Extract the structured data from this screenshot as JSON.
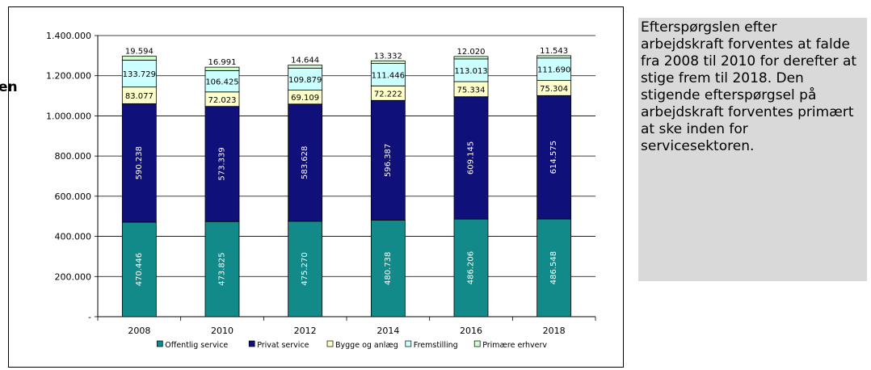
{
  "edge_text": "en",
  "side_note": {
    "text": "Efterspørgslen efter arbejdskraft forventes at falde fra 2008 til 2010 for derefter at stige frem til 2018. Den stigende efterspørgsel på arbejdskraft forventes primært at ske inden for servicesektoren."
  },
  "chart_data": {
    "type": "bar",
    "stacked": true,
    "categories": [
      "2008",
      "2010",
      "2012",
      "2014",
      "2016",
      "2018"
    ],
    "series": [
      {
        "name": "Offentlig service",
        "color": "#138a8a",
        "values": [
          470446,
          473825,
          475270,
          480738,
          486206,
          486548
        ],
        "labels": [
          "470.446",
          "473.825",
          "475.270",
          "480.738",
          "486.206",
          "486.548"
        ]
      },
      {
        "name": "Privat service",
        "color": "#10107a",
        "values": [
          590238,
          573339,
          583628,
          596387,
          609145,
          614575
        ],
        "labels": [
          "590.238",
          "573.339",
          "583.628",
          "596.387",
          "609.145",
          "614.575"
        ]
      },
      {
        "name": "Bygge og anlæg",
        "color": "#ffffcc",
        "values": [
          83077,
          72023,
          69109,
          72222,
          75334,
          75304
        ],
        "labels": [
          "83.077",
          "72.023",
          "69.109",
          "72.222",
          "75.334",
          "75.304"
        ]
      },
      {
        "name": "Fremstilling",
        "color": "#ccffff",
        "values": [
          133729,
          106425,
          109879,
          111446,
          113013,
          111690
        ],
        "labels": [
          "133.729",
          "106.425",
          "109.879",
          "111.446",
          "113.013",
          "111.690"
        ]
      },
      {
        "name": "Primære erhverv",
        "color": "#ccffcc",
        "values": [
          19594,
          16991,
          14644,
          13332,
          12020,
          11543
        ],
        "labels": [
          "19.594",
          "16.991",
          "14.644",
          "13.332",
          "12.020",
          "11.543"
        ]
      }
    ],
    "ylim": [
      0,
      1400000
    ],
    "yticks": [
      0,
      200000,
      400000,
      600000,
      800000,
      1000000,
      1200000,
      1400000
    ],
    "ytick_labels": [
      "-",
      "200.000",
      "400.000",
      "600.000",
      "800.000",
      "1.000.000",
      "1.200.000",
      "1.400.000"
    ],
    "grid": true,
    "legend_position": "bottom"
  }
}
